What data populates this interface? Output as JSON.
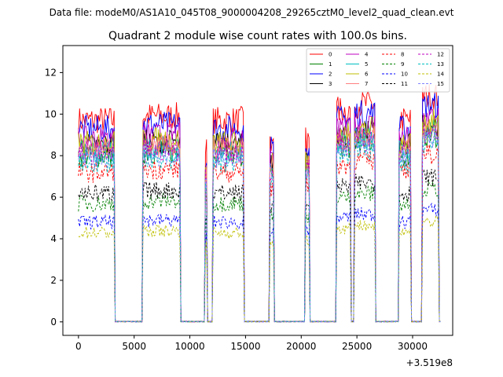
{
  "suptitle": "Data file: modeM0/AS1A10_045T08_9000004208_29265cztM0_level2_quad_clean.evt",
  "chart_data": {
    "type": "line",
    "title": "Quadrant 2 module wise count rates with 100.0s bins.",
    "xlabel": "",
    "ylabel": "",
    "x_offset_label": "+3.519e8",
    "xlim": [
      -1400,
      33600
    ],
    "ylim": [
      -0.65,
      13.3
    ],
    "x_ticks": [
      0,
      5000,
      10000,
      15000,
      20000,
      25000,
      30000
    ],
    "y_ticks": [
      0,
      2,
      4,
      6,
      8,
      10,
      12
    ],
    "x_tick_labels": [
      "0",
      "5000",
      "10000",
      "15000",
      "20000",
      "25000",
      "30000"
    ],
    "y_tick_labels": [
      "0",
      "2",
      "4",
      "6",
      "8",
      "10",
      "12"
    ],
    "legend_position": "top-right",
    "segments": [
      {
        "start": 0,
        "end": 3200,
        "peak": 1.0
      },
      {
        "start": 5800,
        "end": 9100,
        "peak": 1.02
      },
      {
        "start": 11400,
        "end": 11500,
        "peak": 0.85
      },
      {
        "start": 12100,
        "end": 14800,
        "peak": 1.0
      },
      {
        "start": 17200,
        "end": 17500,
        "peak": 0.9
      },
      {
        "start": 20400,
        "end": 20700,
        "peak": 0.9
      },
      {
        "start": 23200,
        "end": 24400,
        "peak": 1.05
      },
      {
        "start": 24800,
        "end": 26600,
        "peak": 1.08
      },
      {
        "start": 28800,
        "end": 29800,
        "peak": 1.0
      },
      {
        "start": 30900,
        "end": 32300,
        "peak": 1.12
      }
    ],
    "series": [
      {
        "name": "0",
        "level": 9.7,
        "color": "#ff0000",
        "dash": "solid"
      },
      {
        "name": "1",
        "level": 8.0,
        "color": "#008000",
        "dash": "solid"
      },
      {
        "name": "2",
        "level": 9.3,
        "color": "#0000ff",
        "dash": "solid"
      },
      {
        "name": "3",
        "level": 8.5,
        "color": "#000000",
        "dash": "solid"
      },
      {
        "name": "4",
        "level": 8.8,
        "color": "#bf00bf",
        "dash": "solid"
      },
      {
        "name": "5",
        "level": 8.2,
        "color": "#00bfbf",
        "dash": "solid"
      },
      {
        "name": "6",
        "level": 8.6,
        "color": "#bfbf00",
        "dash": "solid"
      },
      {
        "name": "7",
        "level": 8.3,
        "color": "#ff7f7f",
        "dash": "solid"
      },
      {
        "name": "8",
        "level": 7.2,
        "color": "#ff0000",
        "dash": "dashed"
      },
      {
        "name": "9",
        "level": 5.7,
        "color": "#008000",
        "dash": "dashed"
      },
      {
        "name": "10",
        "level": 4.8,
        "color": "#0000ff",
        "dash": "dashed"
      },
      {
        "name": "11",
        "level": 6.2,
        "color": "#000000",
        "dash": "dashed"
      },
      {
        "name": "12",
        "level": 8.1,
        "color": "#bf00bf",
        "dash": "dashed"
      },
      {
        "name": "13",
        "level": 7.7,
        "color": "#00bfbf",
        "dash": "dashed"
      },
      {
        "name": "14",
        "level": 4.3,
        "color": "#bfbf00",
        "dash": "dashed"
      },
      {
        "name": "15",
        "level": 7.9,
        "color": "#8080ff",
        "dash": "dashed"
      }
    ]
  }
}
